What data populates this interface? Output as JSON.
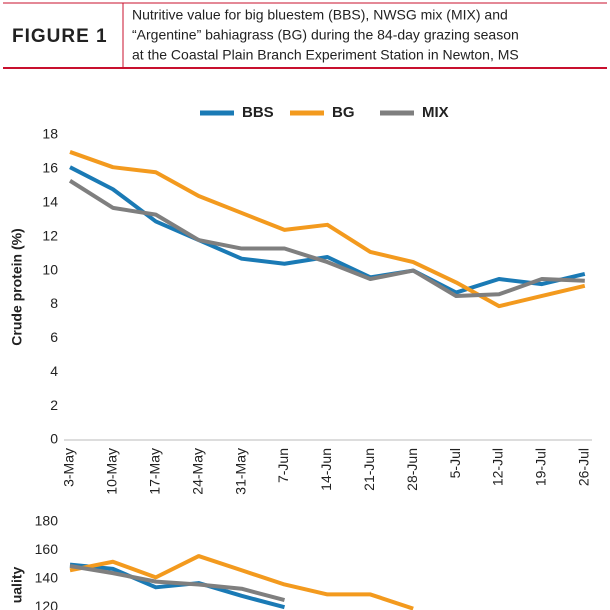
{
  "header": {
    "figure": "FIGURE 1",
    "caption": [
      "Nutritive value for big bluestem (BBS), NWSG mix (MIX) and",
      "“Argentine” bahiagrass (BG) during the 84-day grazing season",
      "at the Coastal Plain Branch Experiment Station in Newton, MS"
    ]
  },
  "chart_data": [
    {
      "type": "line",
      "y_label": "Crude protein (%)",
      "legend": "top",
      "categories": [
        "3-May",
        "10-May",
        "17-May",
        "24-May",
        "31-May",
        "7-Jun",
        "14-Jun",
        "21-Jun",
        "28-Jun",
        "5-Jul",
        "12-Jul",
        "19-Jul",
        "26-Jul"
      ],
      "series": [
        {
          "name": "BBS",
          "color": "#1a7ab5",
          "values": [
            16.1,
            14.8,
            12.9,
            11.8,
            10.7,
            10.4,
            10.8,
            9.6,
            10.0,
            8.7,
            9.5,
            9.2,
            9.8
          ]
        },
        {
          "name": "BG",
          "color": "#f39a1e",
          "values": [
            17.0,
            16.1,
            15.8,
            14.4,
            13.4,
            12.4,
            12.7,
            11.1,
            10.5,
            9.3,
            7.9,
            8.5,
            9.1
          ]
        },
        {
          "name": "MIX",
          "color": "#7f7f7f",
          "values": [
            15.3,
            13.7,
            13.3,
            11.8,
            11.3,
            11.3,
            10.5,
            9.5,
            10.0,
            8.5,
            8.6,
            9.5,
            9.4
          ]
        }
      ],
      "ylim": [
        0,
        18
      ],
      "yticks": [
        0,
        2,
        4,
        6,
        8,
        10,
        12,
        14,
        16,
        18
      ]
    },
    {
      "type": "line",
      "y_label": "uality",
      "series": [
        {
          "name": "BBS",
          "color": "#1a7ab5",
          "values": [
            150,
            147,
            134,
            137,
            128,
            120,
            null,
            null,
            null,
            null,
            null,
            null,
            null
          ]
        },
        {
          "name": "BG",
          "color": "#f39a1e",
          "values": [
            146,
            152,
            141,
            156,
            146,
            136,
            129,
            129,
            119,
            null,
            null,
            null,
            null
          ]
        },
        {
          "name": "MIX",
          "color": "#7f7f7f",
          "values": [
            149,
            144,
            138,
            136,
            133,
            125,
            null,
            null,
            null,
            null,
            null,
            null,
            null
          ]
        }
      ],
      "ylim": [
        100,
        180
      ],
      "yticks": [
        120,
        140,
        160,
        180
      ]
    }
  ]
}
